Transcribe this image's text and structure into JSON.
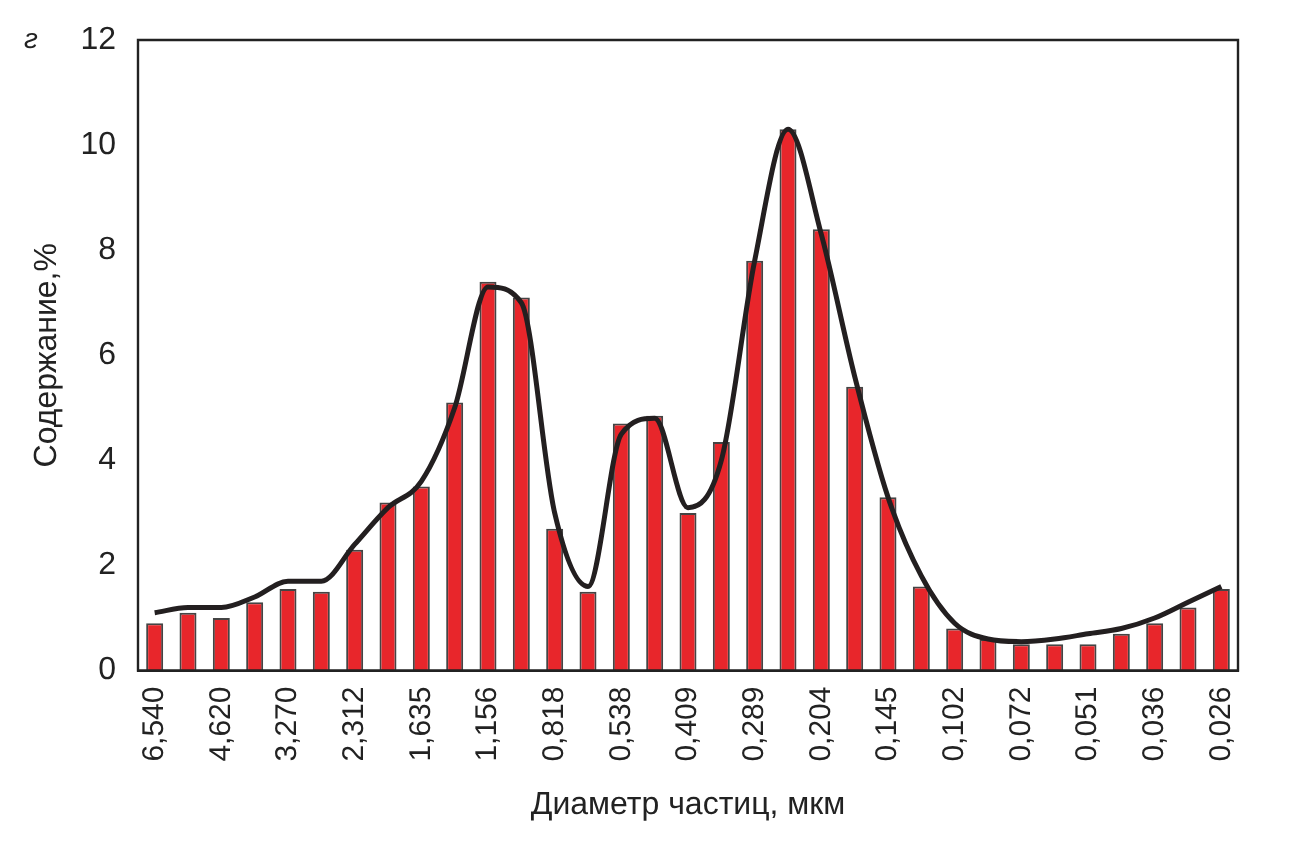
{
  "chart_data": {
    "type": "bar",
    "xlabel": "Диаметр частиц, мкм",
    "ylabel": "Содержание,%",
    "annotations": [
      "г"
    ],
    "categories": [
      "6,540",
      null,
      "4,620",
      null,
      "3,270",
      null,
      "2,312",
      null,
      "1,635",
      null,
      "1,156",
      null,
      "0,818",
      null,
      "0,538",
      null,
      "0,409",
      null,
      "0,289",
      null,
      "0,204",
      null,
      "0,145",
      null,
      "0,102",
      null,
      "0,072",
      null,
      "0,051",
      null,
      "0,036",
      null,
      "0,026"
    ],
    "series": [
      {
        "color": "#e8262b",
        "values": [
          0.9,
          1.1,
          1.0,
          1.3,
          1.55,
          1.5,
          2.3,
          3.2,
          3.5,
          5.1,
          7.4,
          7.1,
          2.7,
          1.5,
          4.7,
          4.85,
          3.0,
          4.35,
          7.8,
          10.3,
          8.4,
          5.4,
          3.3,
          1.6,
          0.8,
          0.6,
          0.5,
          0.5,
          0.5,
          0.7,
          0.9,
          1.2,
          1.55
        ]
      },
      {
        "type": "line",
        "color": "#231f20",
        "values": [
          1.1,
          1.2,
          1.2,
          1.4,
          1.7,
          1.7,
          2.4,
          3.1,
          3.6,
          5.0,
          7.3,
          7.0,
          3.0,
          1.6,
          4.5,
          4.8,
          3.1,
          4.0,
          7.8,
          10.3,
          8.3,
          5.6,
          3.3,
          1.8,
          0.9,
          0.6,
          0.55,
          0.6,
          0.7,
          0.8,
          1.0,
          1.3,
          1.6
        ]
      }
    ],
    "ylim": [
      0,
      12
    ],
    "yticks": [
      0,
      2,
      4,
      6,
      8,
      10,
      12
    ],
    "grid": false,
    "legend": false,
    "marker": "none"
  }
}
